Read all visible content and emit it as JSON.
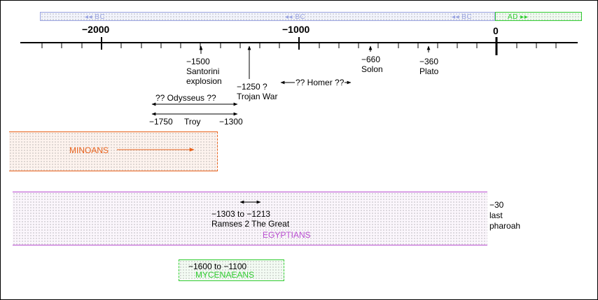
{
  "axis": {
    "ticks": [
      {
        "value": -2000,
        "label": "−2000"
      },
      {
        "value": -1000,
        "label": "−1000"
      },
      {
        "value": 0,
        "label": "0"
      }
    ]
  },
  "era_bar": {
    "bc_label": "◂◂ BC",
    "ad_label": "AD ▸▸"
  },
  "events": {
    "santorini": {
      "year": "−1500",
      "name1": "Santorini",
      "name2": "explosion"
    },
    "trojan_war": {
      "year": "−1250 ?",
      "name": "Trojan War"
    },
    "homer": {
      "label": "?? Homer ??"
    },
    "solon": {
      "year": "−660",
      "name": "Solon"
    },
    "plato": {
      "year": "−360",
      "name": "Plato"
    },
    "odysseus": {
      "label": "?? Odysseus ??"
    },
    "troy": {
      "start": "−1750",
      "name": "Troy",
      "end": "−1300"
    }
  },
  "civilizations": {
    "minoans": {
      "label": "MINOANS",
      "color": "#e8621c"
    },
    "egyptians": {
      "label": "EGYPTIANS",
      "color": "#b94fd1",
      "ramses_years": "−1303 to −1213",
      "ramses_name": "Ramses 2 The Great",
      "end_year": "−30",
      "end_note1": "last",
      "end_note2": "pharoah"
    },
    "mycenaeans": {
      "label": "MYCENAEANS",
      "color": "#33cc33",
      "years": "−1600 to −1100"
    }
  },
  "colors": {
    "bc": "#9aa4e0",
    "ad": "#33cc33",
    "axis": "#000000"
  }
}
